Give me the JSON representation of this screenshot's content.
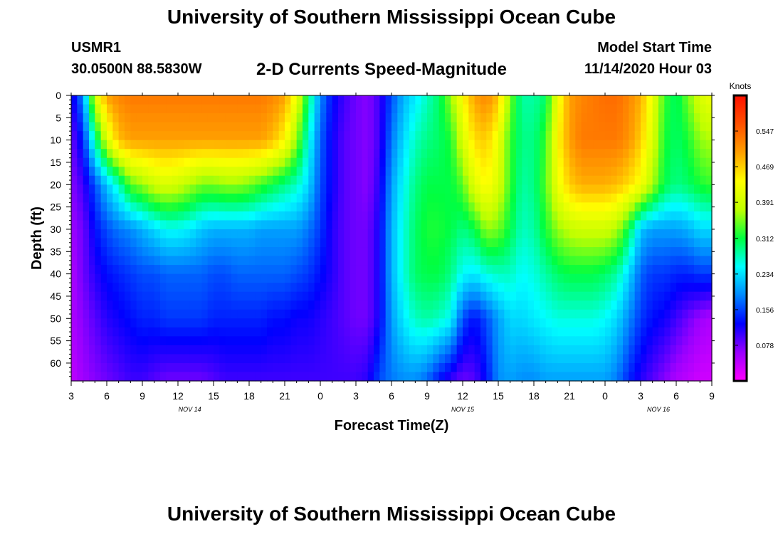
{
  "header": {
    "title": "University of Southern Mississippi Ocean Cube",
    "station_id": "USMR1",
    "coords": "30.0500N 88.5830W",
    "plot_title": "2-D Currents Speed-Magnitude",
    "model_start_label": "Model Start Time",
    "model_start_value": "11/14/2020 Hour 03"
  },
  "footer": {
    "title": "University of Southern Mississippi Ocean Cube"
  },
  "chart_data": {
    "type": "heatmap",
    "title": "2-D Currents Speed-Magnitude",
    "xlabel": "Forecast Time(Z)",
    "ylabel": "Depth (ft)",
    "x_tick_labels": [
      "3",
      "6",
      "9",
      "12",
      "15",
      "18",
      "21",
      "0",
      "3",
      "6",
      "9",
      "12",
      "15",
      "18",
      "21",
      "0",
      "3",
      "6",
      "9"
    ],
    "x_range_hours": [
      0,
      54
    ],
    "date_labels": [
      {
        "text": "NOV 14",
        "hour": 10
      },
      {
        "text": "NOV 15",
        "hour": 33
      },
      {
        "text": "NOV 16",
        "hour": 49.5
      }
    ],
    "y_tick_labels": [
      "0",
      "5",
      "10",
      "15",
      "20",
      "25",
      "30",
      "35",
      "40",
      "45",
      "50",
      "55",
      "60"
    ],
    "ylim": [
      0,
      64
    ],
    "colorbar": {
      "unit": "Knots",
      "min": 0,
      "max": 0.625,
      "tick_labels": [
        "0.078",
        "0.156",
        "0.234",
        "0.312",
        "0.391",
        "0.469",
        "0.547"
      ],
      "colors": [
        "#ff00ff",
        "#9a00ff",
        "#0000ff",
        "#0088ff",
        "#00ffff",
        "#00ff40",
        "#c0ff00",
        "#ffff00",
        "#ffa000",
        "#ff5000",
        "#ff1000"
      ]
    },
    "speed_at_depth": {
      "hours": [
        0,
        1,
        2,
        3,
        4,
        5,
        6,
        7,
        8,
        9,
        10,
        11,
        12,
        13,
        14,
        15,
        16,
        17,
        18,
        19,
        20,
        21,
        22,
        23,
        24,
        25,
        26,
        27,
        28,
        29,
        30,
        31,
        32,
        33,
        34,
        35,
        36,
        37,
        38,
        39,
        40,
        41,
        42,
        43,
        44,
        45,
        46,
        47,
        48,
        49,
        50,
        51,
        52,
        53,
        54
      ],
      "depths": [
        0,
        10,
        20,
        30,
        40,
        50,
        64
      ],
      "knots": [
        [
          0.11,
          0.19,
          0.4,
          0.5,
          0.52,
          0.53,
          0.53,
          0.53,
          0.53,
          0.53,
          0.53,
          0.53,
          0.53,
          0.53,
          0.53,
          0.53,
          0.53,
          0.52,
          0.5,
          0.42,
          0.3,
          0.19,
          0.13,
          0.1,
          0.08,
          0.07,
          0.1,
          0.16,
          0.21,
          0.24,
          0.27,
          0.3,
          0.36,
          0.44,
          0.5,
          0.52,
          0.48,
          0.35,
          0.28,
          0.28,
          0.3,
          0.42,
          0.5,
          0.52,
          0.53,
          0.54,
          0.54,
          0.52,
          0.49,
          0.42,
          0.33,
          0.3,
          0.35,
          0.4,
          0.42
        ],
        [
          0.08,
          0.14,
          0.28,
          0.4,
          0.48,
          0.5,
          0.5,
          0.5,
          0.5,
          0.5,
          0.5,
          0.5,
          0.5,
          0.5,
          0.5,
          0.5,
          0.5,
          0.48,
          0.44,
          0.36,
          0.26,
          0.17,
          0.12,
          0.09,
          0.08,
          0.07,
          0.1,
          0.18,
          0.23,
          0.27,
          0.29,
          0.3,
          0.32,
          0.4,
          0.46,
          0.47,
          0.42,
          0.33,
          0.29,
          0.29,
          0.33,
          0.44,
          0.5,
          0.53,
          0.53,
          0.53,
          0.53,
          0.51,
          0.47,
          0.4,
          0.32,
          0.3,
          0.32,
          0.36,
          0.37
        ],
        [
          0.07,
          0.1,
          0.16,
          0.22,
          0.27,
          0.34,
          0.36,
          0.39,
          0.4,
          0.39,
          0.37,
          0.35,
          0.35,
          0.36,
          0.36,
          0.35,
          0.33,
          0.31,
          0.29,
          0.27,
          0.23,
          0.16,
          0.12,
          0.09,
          0.08,
          0.07,
          0.11,
          0.2,
          0.25,
          0.29,
          0.31,
          0.31,
          0.31,
          0.34,
          0.41,
          0.44,
          0.4,
          0.33,
          0.28,
          0.29,
          0.34,
          0.42,
          0.47,
          0.49,
          0.49,
          0.49,
          0.48,
          0.46,
          0.43,
          0.37,
          0.31,
          0.29,
          0.3,
          0.32,
          0.33
        ],
        [
          0.06,
          0.08,
          0.13,
          0.16,
          0.18,
          0.19,
          0.21,
          0.23,
          0.25,
          0.25,
          0.24,
          0.22,
          0.21,
          0.21,
          0.21,
          0.21,
          0.2,
          0.2,
          0.2,
          0.2,
          0.18,
          0.15,
          0.11,
          0.09,
          0.08,
          0.08,
          0.12,
          0.21,
          0.26,
          0.3,
          0.32,
          0.32,
          0.31,
          0.29,
          0.31,
          0.36,
          0.35,
          0.31,
          0.27,
          0.28,
          0.32,
          0.36,
          0.38,
          0.39,
          0.39,
          0.39,
          0.37,
          0.31,
          0.22,
          0.2,
          0.2,
          0.2,
          0.21,
          0.23,
          0.23
        ],
        [
          0.05,
          0.08,
          0.11,
          0.13,
          0.14,
          0.15,
          0.16,
          0.16,
          0.17,
          0.17,
          0.17,
          0.17,
          0.16,
          0.16,
          0.17,
          0.17,
          0.17,
          0.17,
          0.17,
          0.16,
          0.15,
          0.13,
          0.11,
          0.09,
          0.08,
          0.08,
          0.12,
          0.21,
          0.26,
          0.3,
          0.31,
          0.31,
          0.29,
          0.25,
          0.24,
          0.26,
          0.27,
          0.27,
          0.25,
          0.26,
          0.28,
          0.3,
          0.31,
          0.31,
          0.31,
          0.3,
          0.28,
          0.23,
          0.17,
          0.15,
          0.15,
          0.14,
          0.14,
          0.15,
          0.15
        ],
        [
          0.05,
          0.07,
          0.09,
          0.11,
          0.12,
          0.13,
          0.14,
          0.14,
          0.15,
          0.15,
          0.15,
          0.15,
          0.14,
          0.14,
          0.14,
          0.14,
          0.14,
          0.13,
          0.13,
          0.12,
          0.12,
          0.11,
          0.1,
          0.09,
          0.08,
          0.08,
          0.12,
          0.2,
          0.24,
          0.27,
          0.28,
          0.27,
          0.25,
          0.16,
          0.13,
          0.16,
          0.2,
          0.23,
          0.23,
          0.24,
          0.25,
          0.26,
          0.26,
          0.26,
          0.26,
          0.25,
          0.23,
          0.19,
          0.15,
          0.13,
          0.12,
          0.1,
          0.08,
          0.06,
          0.05
        ],
        [
          0.04,
          0.06,
          0.07,
          0.08,
          0.09,
          0.1,
          0.1,
          0.09,
          0.08,
          0.08,
          0.08,
          0.08,
          0.09,
          0.1,
          0.1,
          0.1,
          0.1,
          0.1,
          0.1,
          0.1,
          0.1,
          0.1,
          0.1,
          0.1,
          0.1,
          0.11,
          0.16,
          0.18,
          0.19,
          0.19,
          0.17,
          0.13,
          0.1,
          0.08,
          0.09,
          0.13,
          0.19,
          0.2,
          0.19,
          0.19,
          0.2,
          0.2,
          0.2,
          0.2,
          0.2,
          0.2,
          0.18,
          0.14,
          0.11,
          0.09,
          0.07,
          0.05,
          0.04,
          0.03,
          0.03
        ]
      ]
    }
  }
}
